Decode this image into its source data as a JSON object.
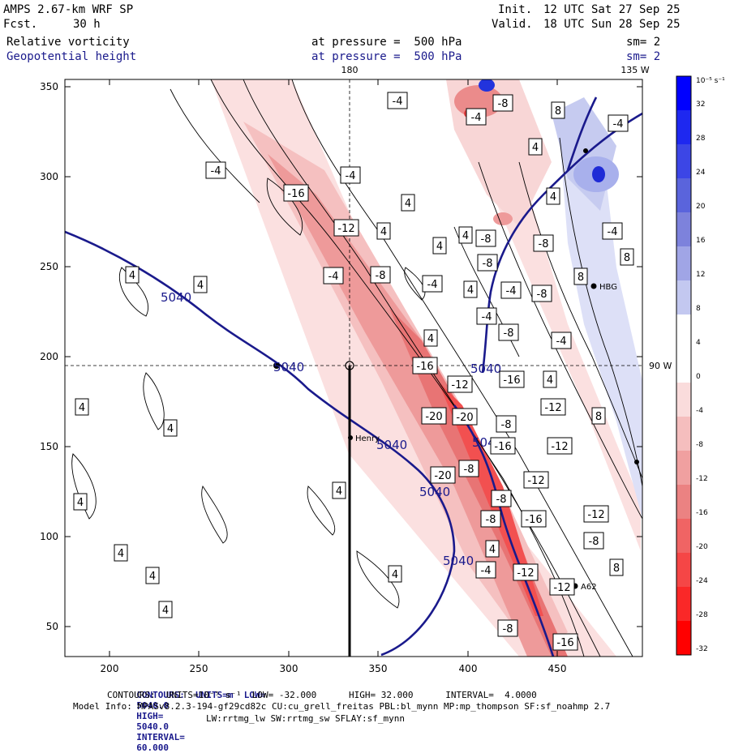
{
  "header": {
    "model": "AMPS 2.67-km WRF SP",
    "init_label": "Init.",
    "init_time": "12 UTC Sat 27 Sep 25",
    "fcst_label": "Fcst.",
    "fcst_value": "30 h",
    "valid_label": "Valid.",
    "valid_time": "18 UTC Sun 28 Sep 25",
    "field1": "Relative vorticity",
    "field1_level": "at pressure =  500 hPa",
    "field1_sm": "sm= 2",
    "field2": "Geopotential height",
    "field2_level": "at pressure =  500 hPa",
    "field2_sm": "sm= 2"
  },
  "axes": {
    "x_ticks": [
      "200",
      "250",
      "300",
      "350",
      "400",
      "450"
    ],
    "y_ticks": [
      "350",
      "300",
      "250",
      "200",
      "150",
      "100",
      "50"
    ],
    "top_labels": [
      "180",
      "135 W"
    ],
    "right_label": "90 W"
  },
  "colorbar": {
    "units": "10⁻⁵ s⁻¹",
    "ticks": [
      "32",
      "28",
      "24",
      "20",
      "16",
      "12",
      "8",
      "4",
      "0",
      "-4",
      "-8",
      "-12",
      "-16",
      "-20",
      "-24",
      "-28",
      "-32"
    ],
    "colors": [
      "#0000ff",
      "#1e28f0",
      "#3c46e6",
      "#5a64dc",
      "#7d82dc",
      "#a0a5e6",
      "#c3c8f0",
      "#ffffff",
      "#ffffff",
      "#fadcdc",
      "#f5bebe",
      "#f0a0a0",
      "#eb8282",
      "#f06464",
      "#f54646",
      "#fa2828",
      "#ff0000"
    ]
  },
  "stations": [
    "Henry",
    "HBG",
    "A62"
  ],
  "height_labels": [
    "5040",
    "5040",
    "5040",
    "5040",
    "5040",
    "5040",
    "5040"
  ],
  "vort_labels": [
    "-4",
    "-8",
    "-4",
    "-16",
    "-4",
    "-12",
    "-4",
    "4",
    "4",
    "-8",
    "-8",
    "-16",
    "-8",
    "-4",
    "-20",
    "-12",
    "-16",
    "4",
    "4",
    "8",
    "-4",
    "4",
    "4",
    "8",
    "-8",
    "-4",
    "8",
    "-12",
    "-20",
    "-8",
    "-16",
    "-20",
    "-12",
    "-16",
    "-12",
    "-16",
    "-12",
    "-8",
    "4",
    "4",
    "4",
    "4",
    "4",
    "4",
    "4",
    "4",
    "4",
    "4",
    "-4",
    "-4",
    "4",
    "-8",
    "4",
    "-4",
    "-8",
    "8",
    "8",
    "-8",
    "-12",
    "-4",
    "4",
    "4",
    "-8",
    "-8",
    "-12",
    "-8",
    "-4"
  ],
  "footer": {
    "line1_label": "CONTOURS:  UNITS=m  LOW=",
    "line1_low": "5040.0",
    "line1_high_label": "HIGH=",
    "line1_high": "5040.0",
    "line1_int_label": "INTERVAL=",
    "line1_int": "60.000",
    "line2": "CONTOURS:  UNITS=10⁻⁵ s⁻¹  LOW= -32.000      HIGH= 32.000      INTERVAL=  4.0000",
    "line3": "Model Info: MPASv8.2.3-194-gf29cd82c CU:cu_grell_freitas PBL:bl_mynn MP:mp_thompson SF:sf_noahmp 2.7",
    "line4": "LW:rrtmg_lw SW:rrtmg_sw SFLAY:sf_mynn"
  }
}
